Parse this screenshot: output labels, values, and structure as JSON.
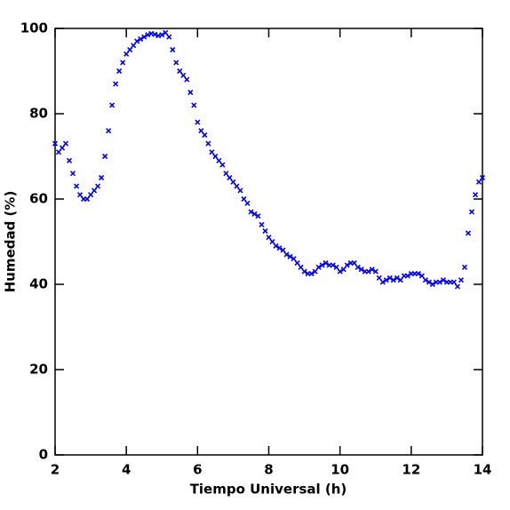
{
  "chart_data": {
    "type": "scatter",
    "x_label": "Tiempo Universal (h)",
    "y_label": "Humedad (%)",
    "xlim": [
      2,
      14
    ],
    "ylim": [
      0,
      100
    ],
    "xticks": [
      2,
      4,
      6,
      8,
      10,
      12,
      14
    ],
    "yticks": [
      0,
      20,
      40,
      60,
      80,
      100
    ],
    "marker": "x",
    "color": "#0000ff",
    "x": [
      2.0,
      2.1,
      2.2,
      2.3,
      2.4,
      2.5,
      2.6,
      2.7,
      2.8,
      2.9,
      3.0,
      3.1,
      3.2,
      3.3,
      3.4,
      3.5,
      3.6,
      3.7,
      3.8,
      3.9,
      4.0,
      4.1,
      4.2,
      4.3,
      4.4,
      4.5,
      4.6,
      4.7,
      4.8,
      4.9,
      5.0,
      5.1,
      5.2,
      5.3,
      5.4,
      5.5,
      5.6,
      5.7,
      5.8,
      5.9,
      6.0,
      6.1,
      6.2,
      6.3,
      6.4,
      6.5,
      6.6,
      6.7,
      6.8,
      6.9,
      7.0,
      7.1,
      7.2,
      7.3,
      7.4,
      7.5,
      7.6,
      7.7,
      7.8,
      7.9,
      8.0,
      8.1,
      8.2,
      8.3,
      8.4,
      8.5,
      8.6,
      8.7,
      8.8,
      8.9,
      9.0,
      9.1,
      9.2,
      9.3,
      9.4,
      9.5,
      9.6,
      9.7,
      9.8,
      9.9,
      10.0,
      10.1,
      10.2,
      10.3,
      10.4,
      10.5,
      10.6,
      10.7,
      10.8,
      10.9,
      11.0,
      11.1,
      11.2,
      11.3,
      11.4,
      11.5,
      11.6,
      11.7,
      11.8,
      11.9,
      12.0,
      12.1,
      12.2,
      12.3,
      12.4,
      12.5,
      12.6,
      12.7,
      12.8,
      12.9,
      13.0,
      13.1,
      13.2,
      13.3,
      13.4,
      13.5,
      13.6,
      13.7,
      13.8,
      13.9,
      14.0
    ],
    "values": [
      73,
      71,
      72,
      73,
      69,
      66,
      63,
      61,
      60,
      60,
      61,
      62,
      63,
      65,
      70,
      76,
      82,
      87,
      90,
      92,
      94,
      95,
      96,
      97,
      97.5,
      98,
      98.5,
      98.8,
      98.6,
      98.3,
      98.5,
      99,
      98,
      95,
      92,
      90,
      89,
      88,
      85,
      82,
      78,
      76,
      75,
      73,
      71,
      70,
      69,
      68,
      66,
      65,
      64,
      63,
      62,
      60,
      59,
      57,
      56.5,
      56,
      54,
      52.5,
      51,
      50,
      49,
      48.5,
      48,
      47,
      46.5,
      46,
      45,
      44,
      43,
      42.5,
      42.5,
      43,
      44,
      44.5,
      45,
      44.5,
      44.5,
      44,
      43,
      43.5,
      44.5,
      45,
      45,
      44,
      43.5,
      43,
      43,
      43.5,
      43,
      41.5,
      40.5,
      41,
      41.5,
      41,
      41.5,
      41,
      42,
      42,
      42.5,
      42.5,
      42.5,
      42,
      41,
      40.5,
      40,
      40.5,
      40.5,
      41,
      40.5,
      40.5,
      40.5,
      39.5,
      41,
      44,
      52,
      57,
      61,
      64,
      65
    ]
  }
}
